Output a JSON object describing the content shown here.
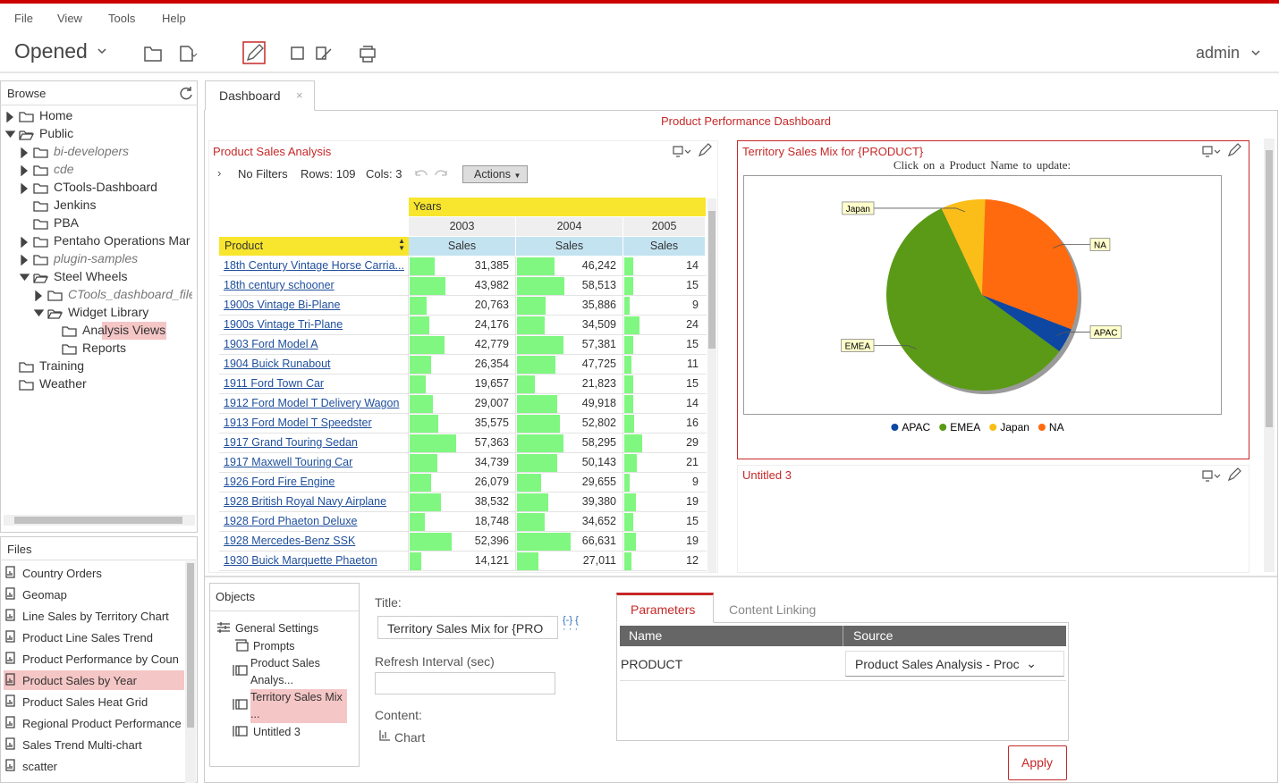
{
  "menu": [
    "File",
    "View",
    "Tools",
    "Help"
  ],
  "toolbar": {
    "opened": "Opened",
    "user": "admin"
  },
  "browse": {
    "title": "Browse",
    "items": [
      "Home",
      "Public",
      "bi-developers",
      "cde",
      "CTools-Dashboard",
      "Jenkins",
      "PBA",
      "Pentaho Operations Mar",
      "plugin-samples",
      "Steel Wheels",
      "CTools_dashboard_file",
      "Widget Library",
      "Analysis Views",
      "Reports",
      "Training",
      "Weather"
    ]
  },
  "files": {
    "title": "Files",
    "items": [
      "Country Orders",
      "Geomap",
      "Line Sales by Territory Chart",
      "Product Line Sales Trend",
      "Product Performance by Coun",
      "Product Sales by Year",
      "Product Sales Heat Grid",
      "Regional Product Performance",
      "Sales Trend Multi-chart",
      "scatter"
    ]
  },
  "tab": "Dashboard",
  "dashboard_title": "Product Performance Dashboard",
  "analysis": {
    "title": "Product Sales Analysis",
    "filters": "No Filters",
    "rows": "Rows: 109",
    "cols": "Cols: 3",
    "actions": "Actions",
    "column_header": "Years",
    "row_header": "Product",
    "years": [
      "2003",
      "2004",
      "2005"
    ],
    "measures": [
      "Sales",
      "Sales",
      "Sales"
    ],
    "products": [
      "18th Century Vintage Horse Carria...",
      "18th century schooner",
      "1900s Vintage Bi-Plane",
      "1900s Vintage Tri-Plane",
      "1903 Ford Model A",
      "1904 Buick Runabout",
      "1911 Ford Town Car",
      "1912 Ford Model T Delivery Wagon",
      "1913 Ford Model T Speedster",
      "1917 Grand Touring Sedan",
      "1917 Maxwell Touring Car",
      "1926 Ford Fire Engine",
      "1928 British Royal Navy Airplane",
      "1928 Ford Phaeton Deluxe",
      "1928 Mercedes-Benz SSK",
      "1930 Buick Marquette Phaeton"
    ],
    "sales": [
      [
        31385,
        46242,
        14
      ],
      [
        43982,
        58513,
        15
      ],
      [
        20763,
        35886,
        9
      ],
      [
        24176,
        34509,
        24
      ],
      [
        42779,
        57381,
        15
      ],
      [
        26354,
        47725,
        11
      ],
      [
        19657,
        21823,
        15
      ],
      [
        29007,
        49918,
        14
      ],
      [
        35575,
        52802,
        16
      ],
      [
        57363,
        58295,
        29
      ],
      [
        34739,
        50143,
        21
      ],
      [
        26079,
        29655,
        9
      ],
      [
        38532,
        39380,
        19
      ],
      [
        18748,
        34652,
        15
      ],
      [
        52396,
        66631,
        19
      ],
      [
        14121,
        27011,
        12
      ]
    ],
    "value_labels": [
      [
        "31,385",
        "46,242",
        "14"
      ],
      [
        "43,982",
        "58,513",
        "15"
      ],
      [
        "20,763",
        "35,886",
        "9"
      ],
      [
        "24,176",
        "34,509",
        "24"
      ],
      [
        "42,779",
        "57,381",
        "15"
      ],
      [
        "26,354",
        "47,725",
        "11"
      ],
      [
        "19,657",
        "21,823",
        "15"
      ],
      [
        "29,007",
        "49,918",
        "14"
      ],
      [
        "35,575",
        "52,802",
        "16"
      ],
      [
        "57,363",
        "58,295",
        "29"
      ],
      [
        "34,739",
        "50,143",
        "21"
      ],
      [
        "26,079",
        "29,655",
        "9"
      ],
      [
        "38,532",
        "39,380",
        "19"
      ],
      [
        "18,748",
        "34,652",
        "15"
      ],
      [
        "52,396",
        "66,631",
        "19"
      ],
      [
        "14,121",
        "27,011",
        "12"
      ]
    ],
    "bar_color": "#80f780"
  },
  "chart_data": {
    "type": "pie",
    "title": "Territory Sales Mix for {PRODUCT}",
    "subtitle": "Click on a Product Name to update:",
    "categories": [
      "APAC",
      "EMEA",
      "Japan",
      "NA"
    ],
    "values": [
      4.2,
      58,
      7.5,
      30.3
    ],
    "colors": [
      "#0d47a1",
      "#5a9a17",
      "#fbbd17",
      "#ff6a0f"
    ],
    "legend": "bottom"
  },
  "untitled": "Untitled 3",
  "objects": {
    "title": "Objects",
    "items": [
      "General Settings",
      "Prompts",
      "Product Sales Analys...",
      "Territory Sales Mix ...",
      "Untitled 3"
    ]
  },
  "settings": {
    "title_label": "Title:",
    "title_value": "Territory Sales Mix for {PRO",
    "refresh_label": "Refresh Interval (sec)",
    "content_label": "Content:",
    "content_value": "Chart"
  },
  "parameters": {
    "tabs": [
      "Parameters",
      "Content Linking"
    ],
    "headers": [
      "Name",
      "Source"
    ],
    "row": [
      "PRODUCT",
      "Product Sales Analysis - Proc"
    ],
    "apply": "Apply"
  }
}
